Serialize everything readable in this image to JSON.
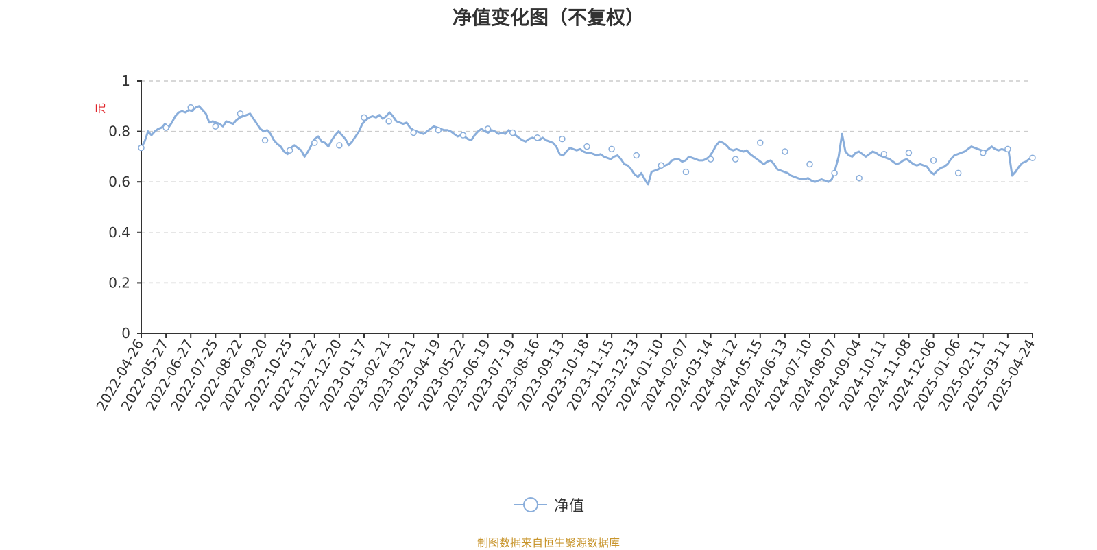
{
  "chart_data": {
    "type": "line",
    "title": "净值变化图（不复权）",
    "ylabel": "元",
    "ylim": [
      0,
      1
    ],
    "yticks": [
      "0",
      "0.2",
      "0.4",
      "0.6",
      "0.8",
      "1"
    ],
    "grid": true,
    "legend_position": "bottom",
    "colors": {
      "series": "#8aaedb",
      "ylabel": "#e0242a",
      "source": "#c8952c",
      "grid": "#cccccc"
    },
    "categories": [
      "2022-04-26",
      "2022-05-27",
      "2022-06-27",
      "2022-07-25",
      "2022-08-22",
      "2022-09-20",
      "2022-10-25",
      "2022-11-22",
      "2022-12-20",
      "2023-01-17",
      "2023-02-21",
      "2023-03-21",
      "2023-04-19",
      "2023-05-22",
      "2023-06-19",
      "2023-07-19",
      "2023-08-16",
      "2023-09-13",
      "2023-10-18",
      "2023-11-15",
      "2023-12-13",
      "2024-01-10",
      "2024-02-07",
      "2024-03-14",
      "2024-04-12",
      "2024-05-15",
      "2024-06-13",
      "2024-07-10",
      "2024-08-07",
      "2024-09-04",
      "2024-10-11",
      "2024-11-08",
      "2024-12-06",
      "2025-01-06",
      "2025-02-11",
      "2025-03-11",
      "2025-04-24"
    ],
    "series": [
      {
        "name": "净值",
        "values": [
          0.735,
          0.815,
          0.895,
          0.82,
          0.87,
          0.765,
          0.725,
          0.755,
          0.745,
          0.855,
          0.84,
          0.795,
          0.805,
          0.785,
          0.81,
          0.795,
          0.775,
          0.77,
          0.74,
          0.73,
          0.705,
          0.665,
          0.64,
          0.69,
          0.69,
          0.755,
          0.72,
          0.67,
          0.635,
          0.615,
          0.71,
          0.715,
          0.685,
          0.635,
          0.715,
          0.73,
          0.695
        ]
      }
    ],
    "path_values": [
      0.735,
      0.76,
      0.8,
      0.785,
      0.8,
      0.81,
      0.815,
      0.83,
      0.815,
      0.835,
      0.86,
      0.875,
      0.88,
      0.875,
      0.885,
      0.88,
      0.895,
      0.9,
      0.885,
      0.87,
      0.835,
      0.84,
      0.835,
      0.83,
      0.82,
      0.84,
      0.835,
      0.83,
      0.845,
      0.855,
      0.86,
      0.865,
      0.87,
      0.85,
      0.83,
      0.81,
      0.8,
      0.805,
      0.79,
      0.765,
      0.75,
      0.74,
      0.72,
      0.71,
      0.735,
      0.745,
      0.735,
      0.725,
      0.7,
      0.72,
      0.745,
      0.77,
      0.78,
      0.76,
      0.755,
      0.74,
      0.765,
      0.785,
      0.8,
      0.785,
      0.77,
      0.745,
      0.76,
      0.78,
      0.8,
      0.83,
      0.845,
      0.855,
      0.86,
      0.855,
      0.865,
      0.85,
      0.86,
      0.875,
      0.86,
      0.84,
      0.835,
      0.83,
      0.835,
      0.815,
      0.805,
      0.8,
      0.795,
      0.79,
      0.8,
      0.81,
      0.82,
      0.815,
      0.81,
      0.805,
      0.805,
      0.8,
      0.79,
      0.78,
      0.785,
      0.78,
      0.77,
      0.765,
      0.785,
      0.8,
      0.81,
      0.8,
      0.795,
      0.805,
      0.8,
      0.79,
      0.795,
      0.79,
      0.805,
      0.795,
      0.785,
      0.775,
      0.765,
      0.76,
      0.77,
      0.775,
      0.77,
      0.765,
      0.775,
      0.765,
      0.76,
      0.755,
      0.74,
      0.71,
      0.705,
      0.72,
      0.735,
      0.73,
      0.725,
      0.73,
      0.72,
      0.715,
      0.715,
      0.71,
      0.705,
      0.71,
      0.7,
      0.695,
      0.69,
      0.7,
      0.705,
      0.69,
      0.67,
      0.665,
      0.65,
      0.63,
      0.62,
      0.635,
      0.61,
      0.59,
      0.64,
      0.645,
      0.65,
      0.66,
      0.665,
      0.67,
      0.685,
      0.69,
      0.69,
      0.68,
      0.685,
      0.7,
      0.695,
      0.69,
      0.685,
      0.685,
      0.69,
      0.7,
      0.72,
      0.745,
      0.76,
      0.755,
      0.745,
      0.73,
      0.725,
      0.73,
      0.725,
      0.72,
      0.725,
      0.71,
      0.7,
      0.69,
      0.68,
      0.67,
      0.68,
      0.685,
      0.67,
      0.65,
      0.645,
      0.64,
      0.635,
      0.625,
      0.62,
      0.615,
      0.61,
      0.61,
      0.615,
      0.605,
      0.6,
      0.605,
      0.61,
      0.605,
      0.6,
      0.61,
      0.65,
      0.7,
      0.79,
      0.72,
      0.705,
      0.7,
      0.715,
      0.72,
      0.71,
      0.7,
      0.71,
      0.72,
      0.715,
      0.705,
      0.7,
      0.695,
      0.69,
      0.68,
      0.67,
      0.675,
      0.685,
      0.69,
      0.68,
      0.67,
      0.665,
      0.67,
      0.665,
      0.66,
      0.64,
      0.63,
      0.645,
      0.655,
      0.66,
      0.67,
      0.69,
      0.705,
      0.71,
      0.715,
      0.72,
      0.73,
      0.74,
      0.735,
      0.73,
      0.725,
      0.72,
      0.73,
      0.74,
      0.73,
      0.725,
      0.73,
      0.725,
      0.72,
      0.625,
      0.64,
      0.66,
      0.675,
      0.68,
      0.69,
      0.695
    ]
  },
  "legend": {
    "label": "净值"
  },
  "source_note": "制图数据来自恒生聚源数据库"
}
